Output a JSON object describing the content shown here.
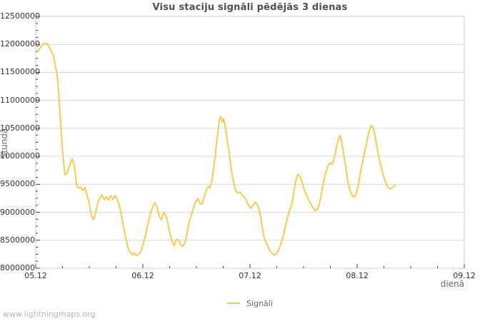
{
  "colors": {
    "background": "#ffffff",
    "line": "#f7ca51",
    "grid": "#d9d9d9",
    "border": "#cccccc",
    "tick": "#444444",
    "tick_label": "#333333",
    "title": "#4f4f4f",
    "axis_title": "#666666",
    "watermark": "#b5b5b5"
  },
  "footer": {
    "watermark": "www.lightningmaps.org"
  },
  "chart_data": {
    "type": "line",
    "title": "Visu staciju signāli pēdējās 3 dienas",
    "xlabel": "dienā",
    "ylabel": "Stundā",
    "grid": true,
    "legend_position": "bottom-center",
    "legend_entries": [
      {
        "label": "Signāli",
        "color": "#f7ca51"
      }
    ],
    "x_tick_labels": [
      "05.12",
      "06.12",
      "07.12",
      "08.12",
      "09.12"
    ],
    "x_range_days": [
      0,
      4
    ],
    "x_minor_per_major": 4,
    "ylim": [
      8000000,
      12500000
    ],
    "y_tick_step": 500000,
    "y_minor_per_major": 4,
    "y_tick_labels": [
      "12500000",
      "12000000",
      "11500000",
      "11000000",
      "10500000",
      "10000000",
      "9500000",
      "9000000",
      "8500000",
      "8000000"
    ],
    "series": [
      {
        "name": "Signāli",
        "color": "#f7ca51",
        "points": [
          [
            0.02,
            11870000
          ],
          [
            0.04,
            11930000
          ],
          [
            0.067,
            12000000
          ],
          [
            0.087,
            12020000
          ],
          [
            0.107,
            12010000
          ],
          [
            0.127,
            11950000
          ],
          [
            0.147,
            11880000
          ],
          [
            0.167,
            11780000
          ],
          [
            0.187,
            11590000
          ],
          [
            0.2,
            11450000
          ],
          [
            0.213,
            11170000
          ],
          [
            0.227,
            10760000
          ],
          [
            0.24,
            10380000
          ],
          [
            0.253,
            10020000
          ],
          [
            0.273,
            9670000
          ],
          [
            0.293,
            9700000
          ],
          [
            0.313,
            9820000
          ],
          [
            0.34,
            9960000
          ],
          [
            0.36,
            9850000
          ],
          [
            0.38,
            9500000
          ],
          [
            0.4,
            9430000
          ],
          [
            0.42,
            9450000
          ],
          [
            0.44,
            9390000
          ],
          [
            0.46,
            9440000
          ],
          [
            0.48,
            9300000
          ],
          [
            0.5,
            9150000
          ],
          [
            0.52,
            8940000
          ],
          [
            0.54,
            8870000
          ],
          [
            0.56,
            9000000
          ],
          [
            0.58,
            9170000
          ],
          [
            0.6,
            9260000
          ],
          [
            0.62,
            9310000
          ],
          [
            0.64,
            9220000
          ],
          [
            0.66,
            9280000
          ],
          [
            0.68,
            9220000
          ],
          [
            0.7,
            9300000
          ],
          [
            0.72,
            9230000
          ],
          [
            0.74,
            9300000
          ],
          [
            0.76,
            9230000
          ],
          [
            0.78,
            9130000
          ],
          [
            0.8,
            8950000
          ],
          [
            0.82,
            8740000
          ],
          [
            0.84,
            8550000
          ],
          [
            0.86,
            8370000
          ],
          [
            0.88,
            8280000
          ],
          [
            0.9,
            8240000
          ],
          [
            0.92,
            8270000
          ],
          [
            0.94,
            8230000
          ],
          [
            0.96,
            8250000
          ],
          [
            0.98,
            8290000
          ],
          [
            1.0,
            8420000
          ],
          [
            1.02,
            8550000
          ],
          [
            1.04,
            8720000
          ],
          [
            1.06,
            8900000
          ],
          [
            1.08,
            9030000
          ],
          [
            1.1,
            9130000
          ],
          [
            1.113,
            9170000
          ],
          [
            1.133,
            9100000
          ],
          [
            1.153,
            8920000
          ],
          [
            1.173,
            8870000
          ],
          [
            1.193,
            8990000
          ],
          [
            1.213,
            8950000
          ],
          [
            1.233,
            8800000
          ],
          [
            1.253,
            8620000
          ],
          [
            1.273,
            8480000
          ],
          [
            1.293,
            8400000
          ],
          [
            1.313,
            8510000
          ],
          [
            1.333,
            8510000
          ],
          [
            1.353,
            8420000
          ],
          [
            1.373,
            8390000
          ],
          [
            1.393,
            8460000
          ],
          [
            1.413,
            8630000
          ],
          [
            1.433,
            8830000
          ],
          [
            1.453,
            8960000
          ],
          [
            1.473,
            9080000
          ],
          [
            1.493,
            9190000
          ],
          [
            1.513,
            9240000
          ],
          [
            1.533,
            9160000
          ],
          [
            1.553,
            9150000
          ],
          [
            1.573,
            9270000
          ],
          [
            1.593,
            9400000
          ],
          [
            1.613,
            9460000
          ],
          [
            1.627,
            9440000
          ],
          [
            1.647,
            9590000
          ],
          [
            1.66,
            9780000
          ],
          [
            1.673,
            9970000
          ],
          [
            1.687,
            10230000
          ],
          [
            1.7,
            10420000
          ],
          [
            1.713,
            10640000
          ],
          [
            1.727,
            10710000
          ],
          [
            1.74,
            10610000
          ],
          [
            1.753,
            10670000
          ],
          [
            1.767,
            10550000
          ],
          [
            1.78,
            10390000
          ],
          [
            1.793,
            10230000
          ],
          [
            1.807,
            10040000
          ],
          [
            1.82,
            9850000
          ],
          [
            1.833,
            9660000
          ],
          [
            1.847,
            9530000
          ],
          [
            1.867,
            9390000
          ],
          [
            1.887,
            9340000
          ],
          [
            1.907,
            9360000
          ],
          [
            1.927,
            9300000
          ],
          [
            1.947,
            9270000
          ],
          [
            1.967,
            9210000
          ],
          [
            1.987,
            9120000
          ],
          [
            2.007,
            9070000
          ],
          [
            2.027,
            9120000
          ],
          [
            2.047,
            9180000
          ],
          [
            2.067,
            9140000
          ],
          [
            2.087,
            9030000
          ],
          [
            2.107,
            8840000
          ],
          [
            2.127,
            8580000
          ],
          [
            2.147,
            8470000
          ],
          [
            2.167,
            8390000
          ],
          [
            2.187,
            8310000
          ],
          [
            2.207,
            8260000
          ],
          [
            2.227,
            8240000
          ],
          [
            2.247,
            8250000
          ],
          [
            2.267,
            8330000
          ],
          [
            2.287,
            8430000
          ],
          [
            2.307,
            8550000
          ],
          [
            2.327,
            8720000
          ],
          [
            2.347,
            8880000
          ],
          [
            2.367,
            9030000
          ],
          [
            2.387,
            9120000
          ],
          [
            2.407,
            9340000
          ],
          [
            2.427,
            9560000
          ],
          [
            2.447,
            9680000
          ],
          [
            2.467,
            9640000
          ],
          [
            2.487,
            9530000
          ],
          [
            2.507,
            9400000
          ],
          [
            2.527,
            9300000
          ],
          [
            2.547,
            9220000
          ],
          [
            2.567,
            9150000
          ],
          [
            2.587,
            9080000
          ],
          [
            2.607,
            9030000
          ],
          [
            2.627,
            9050000
          ],
          [
            2.647,
            9140000
          ],
          [
            2.667,
            9340000
          ],
          [
            2.687,
            9540000
          ],
          [
            2.707,
            9700000
          ],
          [
            2.727,
            9830000
          ],
          [
            2.747,
            9880000
          ],
          [
            2.767,
            9860000
          ],
          [
            2.787,
            9970000
          ],
          [
            2.807,
            10160000
          ],
          [
            2.827,
            10330000
          ],
          [
            2.84,
            10370000
          ],
          [
            2.853,
            10290000
          ],
          [
            2.873,
            10050000
          ],
          [
            2.893,
            9820000
          ],
          [
            2.913,
            9560000
          ],
          [
            2.933,
            9400000
          ],
          [
            2.953,
            9300000
          ],
          [
            2.973,
            9270000
          ],
          [
            2.993,
            9340000
          ],
          [
            3.013,
            9500000
          ],
          [
            3.033,
            9730000
          ],
          [
            3.053,
            9920000
          ],
          [
            3.073,
            10100000
          ],
          [
            3.093,
            10290000
          ],
          [
            3.113,
            10460000
          ],
          [
            3.133,
            10550000
          ],
          [
            3.153,
            10490000
          ],
          [
            3.173,
            10300000
          ],
          [
            3.193,
            10070000
          ],
          [
            3.213,
            9890000
          ],
          [
            3.233,
            9740000
          ],
          [
            3.253,
            9600000
          ],
          [
            3.273,
            9490000
          ],
          [
            3.293,
            9430000
          ],
          [
            3.313,
            9420000
          ],
          [
            3.333,
            9450000
          ],
          [
            3.353,
            9480000
          ]
        ]
      }
    ]
  }
}
